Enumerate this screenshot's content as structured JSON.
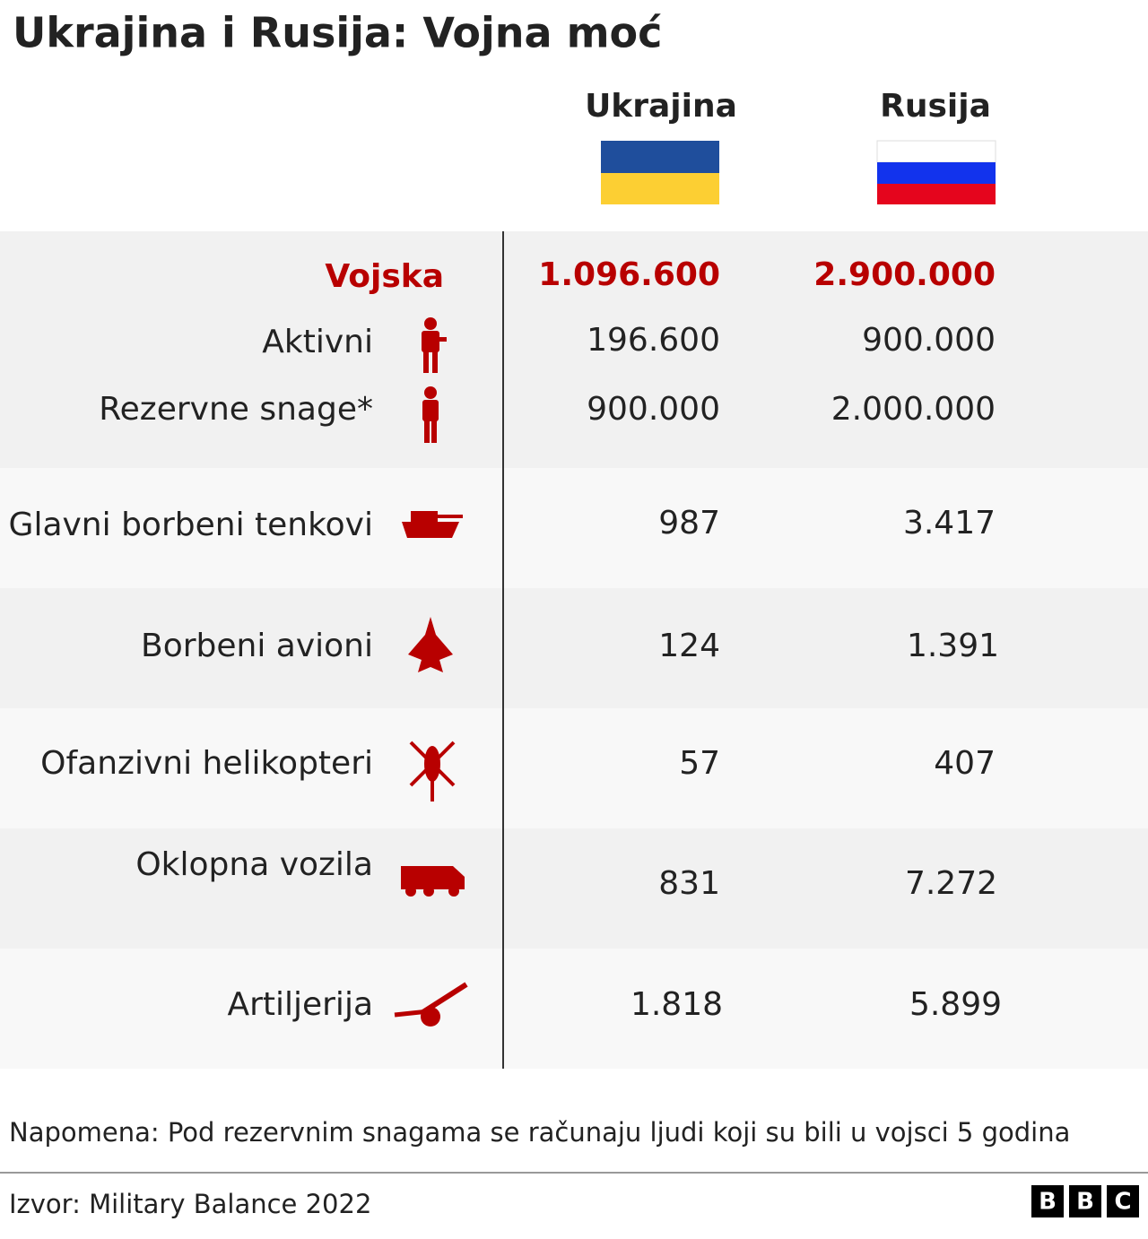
{
  "title": "Ukrajina i Rusija: Vojna moć",
  "columns": [
    "Ukrajina",
    "Rusija"
  ],
  "table": {
    "rows": [
      {
        "label": "Vojska",
        "values": [
          "1.096.600",
          "2.900.000"
        ]
      },
      {
        "label": "Aktivni",
        "values": [
          "196.600",
          "900.000"
        ]
      },
      {
        "label": "Rezervne snage*",
        "values": [
          "900.000",
          "2.000.000"
        ]
      },
      {
        "label": "Glavni borbeni tenkovi",
        "values": [
          "987",
          "3.417"
        ]
      },
      {
        "label": "Borbeni avioni",
        "values": [
          "124",
          "1.391"
        ]
      },
      {
        "label": "Ofanzivni helikopteri",
        "values": [
          "57",
          "407"
        ]
      },
      {
        "label": "Oklopna vozila",
        "values": [
          "831",
          "7.272"
        ]
      },
      {
        "label": "Artiljerija",
        "values": [
          "1.818",
          "5.899"
        ]
      }
    ]
  },
  "note": "Napomena: Pod rezervnim snagama se računaju ljudi koji su bili u vojsci 5 godina",
  "source": "Izvor:  Military Balance 2022",
  "logo": [
    "B",
    "B",
    "C"
  ]
}
